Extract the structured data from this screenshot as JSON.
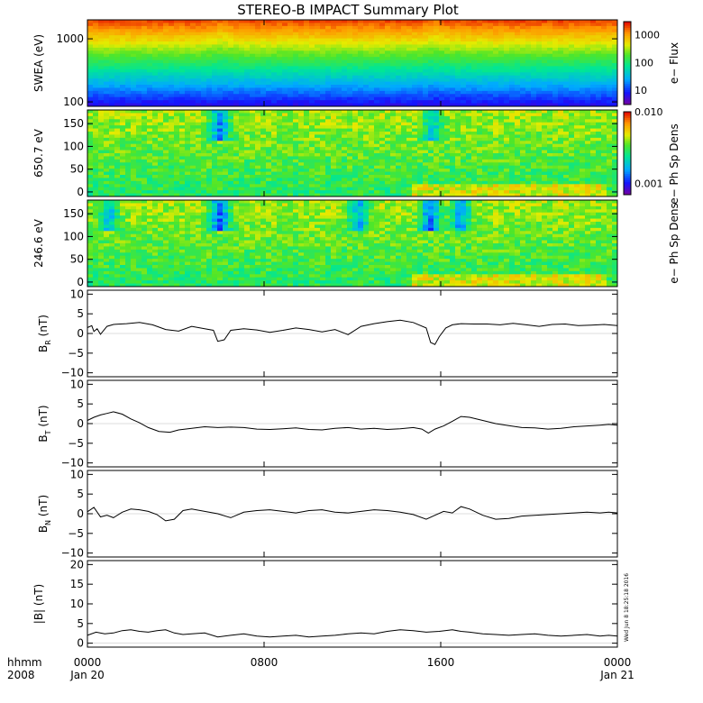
{
  "chart_data": {
    "title": "STEREO-B IMPACT Summary Plot",
    "time_axis": {
      "corner_top": "hhmm",
      "corner_bottom": "2008",
      "ticks": [
        {
          "t": 0,
          "top": "0000",
          "bottom": "Jan 20"
        },
        {
          "t": 480,
          "top": "0800",
          "bottom": ""
        },
        {
          "t": 960,
          "top": "1600",
          "bottom": ""
        },
        {
          "t": 1440,
          "top": "0000",
          "bottom": "Jan 21"
        }
      ],
      "range_minutes": [
        0,
        1440
      ]
    },
    "timestamp": "Wed Jun 8 18:25:18 2016",
    "panels": [
      {
        "id": "swea",
        "type": "heatmap",
        "ylabel": "SWEA (eV)",
        "yscale": "log",
        "ylim": [
          85,
          2000
        ],
        "yticks": [
          {
            "v": 100,
            "label": "100"
          },
          {
            "v": 1000,
            "label": "1000"
          }
        ],
        "colorbar": {
          "label": "e− Flux",
          "scale": "log",
          "range": [
            3,
            3000
          ],
          "ticks": [
            {
              "v": 10,
              "label": "10"
            },
            {
              "v": 100,
              "label": "100"
            },
            {
              "v": 1000,
              "label": "1000"
            }
          ]
        },
        "events": [
          {
            "t": 620,
            "strength": 0.5
          },
          {
            "t": 1600,
            "strength": 0.6
          }
        ]
      },
      {
        "id": "pad650",
        "type": "heatmap",
        "ylabel": "650.7 eV",
        "yscale": "linear",
        "ylim": [
          -10,
          180
        ],
        "yticks": [
          {
            "v": 0,
            "label": "0"
          },
          {
            "v": 50,
            "label": "50"
          },
          {
            "v": 100,
            "label": "100"
          },
          {
            "v": 150,
            "label": "150"
          }
        ],
        "colorbar": {
          "label": "e− Ph Sp Dens",
          "scale": "log",
          "range": [
            0.0007,
            0.01
          ],
          "ticks": [
            {
              "v": 0.001,
              "label": "0.001"
            },
            {
              "v": 0.01,
              "label": "0.010"
            }
          ]
        },
        "events": [
          {
            "t": 610,
            "strength": 0.8
          },
          {
            "t": 1590,
            "strength": 0.6
          }
        ]
      },
      {
        "id": "pad246",
        "type": "heatmap",
        "ylabel": "246.6 eV",
        "yscale": "linear",
        "ylim": [
          -10,
          180
        ],
        "yticks": [
          {
            "v": 0,
            "label": "0"
          },
          {
            "v": 50,
            "label": "50"
          },
          {
            "v": 100,
            "label": "100"
          },
          {
            "v": 150,
            "label": "150"
          }
        ],
        "colorbar": {
          "label": "e− Ph Sp Dens"
        },
        "events": [
          {
            "t": 100,
            "strength": 0.6
          },
          {
            "t": 610,
            "strength": 0.9
          },
          {
            "t": 1250,
            "strength": 0.7
          },
          {
            "t": 1580,
            "strength": 0.9
          },
          {
            "t": 1720,
            "strength": 0.7
          }
        ]
      },
      {
        "id": "br",
        "type": "line",
        "ylabel": "B",
        "ylabel_sub": "R",
        "ylabel_unit": " (nT)",
        "ylim": [
          -11,
          11
        ],
        "yticks": [
          {
            "v": -10,
            "label": "−10"
          },
          {
            "v": -5,
            "label": "−5"
          },
          {
            "v": 0,
            "label": "0"
          },
          {
            "v": 5,
            "label": "5"
          },
          {
            "v": 10,
            "label": "10"
          }
        ],
        "x": [
          0,
          20,
          30,
          45,
          60,
          90,
          120,
          180,
          240,
          300,
          360,
          420,
          480,
          540,
          580,
          600,
          630,
          660,
          720,
          780,
          840,
          900,
          960,
          1020,
          1080,
          1140,
          1200,
          1260,
          1320,
          1380,
          1440,
          1500,
          1560,
          1580,
          1600,
          1620,
          1650,
          1680,
          1720,
          1780,
          1840,
          1900,
          1960,
          2020,
          2080,
          2140,
          2200,
          2260,
          2320,
          2380,
          2440
        ],
        "values": [
          1.5,
          2.0,
          0.5,
          1.2,
          -0.2,
          1.8,
          2.3,
          2.5,
          2.8,
          2.2,
          1.0,
          0.6,
          1.8,
          1.2,
          0.8,
          -2.0,
          -1.6,
          0.8,
          1.2,
          0.9,
          0.3,
          0.8,
          1.4,
          1.0,
          0.4,
          1.0,
          -0.3,
          1.8,
          2.5,
          3.0,
          3.4,
          2.8,
          1.4,
          -2.3,
          -2.8,
          -0.8,
          1.4,
          2.2,
          2.5,
          2.4,
          2.4,
          2.2,
          2.6,
          2.2,
          1.8,
          2.3,
          2.4,
          2.0,
          2.1,
          2.3,
          2.0
        ]
      },
      {
        "id": "bt",
        "type": "line",
        "ylabel": "B",
        "ylabel_sub": "T",
        "ylabel_unit": " (nT)",
        "ylim": [
          -11,
          11
        ],
        "yticks": [
          {
            "v": -10,
            "label": "−10"
          },
          {
            "v": -5,
            "label": "−5"
          },
          {
            "v": 0,
            "label": "0"
          },
          {
            "v": 5,
            "label": "5"
          },
          {
            "v": 10,
            "label": "10"
          }
        ],
        "x": [
          0,
          30,
          60,
          90,
          120,
          160,
          200,
          240,
          280,
          330,
          380,
          420,
          480,
          540,
          600,
          660,
          720,
          780,
          840,
          900,
          960,
          1020,
          1080,
          1140,
          1200,
          1260,
          1320,
          1380,
          1440,
          1500,
          1540,
          1570,
          1600,
          1640,
          1680,
          1720,
          1760,
          1820,
          1880,
          1940,
          2000,
          2060,
          2120,
          2180,
          2240,
          2300,
          2360,
          2400,
          2440
        ],
        "values": [
          0.8,
          1.6,
          2.2,
          2.6,
          3.0,
          2.4,
          1.2,
          0.2,
          -1.0,
          -2.0,
          -2.2,
          -1.6,
          -1.2,
          -0.8,
          -1.0,
          -0.9,
          -1.0,
          -1.4,
          -1.5,
          -1.3,
          -1.1,
          -1.5,
          -1.6,
          -1.2,
          -1.0,
          -1.4,
          -1.2,
          -1.5,
          -1.3,
          -1.0,
          -1.4,
          -2.4,
          -1.4,
          -0.6,
          0.6,
          1.8,
          1.6,
          0.8,
          0.0,
          -0.5,
          -1.0,
          -1.1,
          -1.4,
          -1.2,
          -0.8,
          -0.6,
          -0.4,
          -0.2,
          -0.4
        ]
      },
      {
        "id": "bn",
        "type": "line",
        "ylabel": "B",
        "ylabel_sub": "N",
        "ylabel_unit": " (nT)",
        "ylim": [
          -11,
          11
        ],
        "yticks": [
          {
            "v": -10,
            "label": "−10"
          },
          {
            "v": -5,
            "label": "−5"
          },
          {
            "v": 0,
            "label": "0"
          },
          {
            "v": 5,
            "label": "5"
          },
          {
            "v": 10,
            "label": "10"
          }
        ],
        "x": [
          0,
          30,
          60,
          90,
          120,
          160,
          200,
          240,
          280,
          320,
          360,
          400,
          440,
          480,
          540,
          600,
          660,
          720,
          780,
          840,
          900,
          960,
          1020,
          1080,
          1140,
          1200,
          1260,
          1320,
          1380,
          1440,
          1500,
          1560,
          1600,
          1640,
          1680,
          1720,
          1760,
          1820,
          1880,
          1940,
          2000,
          2060,
          2120,
          2180,
          2240,
          2300,
          2360,
          2400,
          2440
        ],
        "values": [
          0.5,
          1.6,
          -0.8,
          -0.4,
          -1.0,
          0.4,
          1.2,
          1.0,
          0.6,
          -0.2,
          -1.8,
          -1.4,
          0.8,
          1.2,
          0.6,
          0.0,
          -1.0,
          0.4,
          0.8,
          1.0,
          0.6,
          0.2,
          0.8,
          1.0,
          0.4,
          0.2,
          0.6,
          1.0,
          0.8,
          0.4,
          -0.2,
          -1.4,
          -0.4,
          0.6,
          0.2,
          1.8,
          1.2,
          -0.4,
          -1.4,
          -1.2,
          -0.6,
          -0.4,
          -0.2,
          0.0,
          0.2,
          0.4,
          0.2,
          0.4,
          0.2
        ]
      },
      {
        "id": "bmag",
        "type": "line",
        "ylabel": "|B| (nT)",
        "ylim": [
          -1,
          21
        ],
        "yticks": [
          {
            "v": 0,
            "label": "0"
          },
          {
            "v": 5,
            "label": "5"
          },
          {
            "v": 10,
            "label": "10"
          },
          {
            "v": 15,
            "label": "15"
          },
          {
            "v": 20,
            "label": "20"
          }
        ],
        "x": [
          0,
          40,
          80,
          120,
          160,
          200,
          240,
          280,
          320,
          360,
          400,
          440,
          480,
          540,
          600,
          660,
          720,
          780,
          840,
          900,
          960,
          1020,
          1080,
          1140,
          1200,
          1260,
          1320,
          1380,
          1440,
          1500,
          1560,
          1620,
          1680,
          1720,
          1760,
          1820,
          1880,
          1940,
          2000,
          2060,
          2120,
          2180,
          2240,
          2300,
          2360,
          2400,
          2440
        ],
        "values": [
          2.0,
          2.8,
          2.4,
          2.6,
          3.2,
          3.4,
          3.0,
          2.8,
          3.2,
          3.4,
          2.6,
          2.2,
          2.4,
          2.6,
          1.6,
          2.0,
          2.4,
          1.8,
          1.6,
          1.8,
          2.0,
          1.6,
          1.8,
          2.0,
          2.4,
          2.6,
          2.4,
          3.0,
          3.4,
          3.2,
          2.8,
          3.0,
          3.4,
          3.0,
          2.8,
          2.4,
          2.2,
          2.0,
          2.2,
          2.4,
          2.0,
          1.8,
          2.0,
          2.2,
          1.8,
          2.0,
          1.8
        ]
      }
    ]
  }
}
